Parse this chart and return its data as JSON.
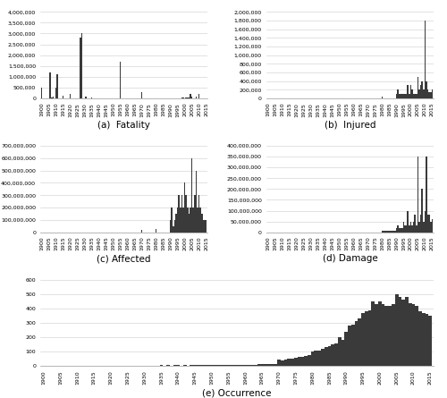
{
  "years": [
    1900,
    1901,
    1902,
    1903,
    1904,
    1905,
    1906,
    1907,
    1908,
    1909,
    1910,
    1911,
    1912,
    1913,
    1914,
    1915,
    1916,
    1917,
    1918,
    1919,
    1920,
    1921,
    1922,
    1923,
    1924,
    1925,
    1926,
    1927,
    1928,
    1929,
    1930,
    1931,
    1932,
    1933,
    1934,
    1935,
    1936,
    1937,
    1938,
    1939,
    1940,
    1941,
    1942,
    1943,
    1944,
    1945,
    1946,
    1947,
    1948,
    1949,
    1950,
    1951,
    1952,
    1953,
    1954,
    1955,
    1956,
    1957,
    1958,
    1959,
    1960,
    1961,
    1962,
    1963,
    1964,
    1965,
    1966,
    1967,
    1968,
    1969,
    1970,
    1971,
    1972,
    1973,
    1974,
    1975,
    1976,
    1977,
    1978,
    1979,
    1980,
    1981,
    1982,
    1983,
    1984,
    1985,
    1986,
    1987,
    1988,
    1989,
    1990,
    1991,
    1992,
    1993,
    1994,
    1995,
    1996,
    1997,
    1998,
    1999,
    2000,
    2001,
    2002,
    2003,
    2004,
    2005,
    2006,
    2007,
    2008,
    2009,
    2010,
    2011,
    2012,
    2013,
    2014,
    2015
  ],
  "fatality": [
    500000,
    9000,
    12000,
    7000,
    4000,
    8000,
    1200000,
    25000,
    75000,
    10000,
    500000,
    1100000,
    5000,
    8000,
    6000,
    140000,
    5000,
    5000,
    5000,
    5000,
    200000,
    5000,
    5000,
    5000,
    5000,
    5000,
    5000,
    2800000,
    3000000,
    5000,
    5000,
    100000,
    5000,
    5000,
    5000,
    50000,
    5000,
    5000,
    5000,
    5000,
    5000,
    5000,
    5000,
    5000,
    5000,
    5000,
    5000,
    5000,
    5000,
    5000,
    5000,
    5000,
    5000,
    5000,
    5000,
    1700000,
    5000,
    5000,
    5000,
    5000,
    5000,
    5000,
    5000,
    5000,
    5000,
    5000,
    5000,
    5000,
    5000,
    5000,
    300000,
    5000,
    5000,
    5000,
    5000,
    5000,
    3000,
    5000,
    5000,
    5000,
    5000,
    5000,
    5000,
    5000,
    5000,
    5000,
    5000,
    5000,
    5000,
    5000,
    5000,
    5000,
    5000,
    5000,
    5000,
    5000,
    5000,
    5000,
    50000,
    30000,
    15000,
    25000,
    30000,
    35000,
    220000,
    90000,
    6000,
    8000,
    80000,
    15000,
    220000,
    10000,
    10000,
    8000,
    8000,
    12000
  ],
  "injured": [
    2000,
    1000,
    1000,
    1000,
    1000,
    1000,
    5000,
    1000,
    3000,
    1000,
    3000,
    1000,
    1000,
    1000,
    1000,
    1000,
    1000,
    1000,
    1000,
    1000,
    1000,
    1000,
    1000,
    1000,
    1000,
    1000,
    1000,
    1000,
    1000,
    1000,
    1000,
    1000,
    1000,
    1000,
    1000,
    1000,
    1000,
    1000,
    1000,
    1000,
    1000,
    1000,
    1000,
    1000,
    1000,
    1000,
    1000,
    1000,
    1000,
    1000,
    1000,
    1000,
    1000,
    1000,
    1000,
    1000,
    1000,
    1000,
    1000,
    1000,
    1000,
    1000,
    1000,
    1000,
    1000,
    1000,
    1000,
    1000,
    1000,
    1000,
    1000,
    1000,
    1000,
    1000,
    1000,
    1000,
    1000,
    1000,
    1000,
    1000,
    50000,
    5000,
    5000,
    5000,
    5000,
    5000,
    5000,
    5000,
    5000,
    5000,
    100000,
    200000,
    100000,
    100000,
    100000,
    100000,
    100000,
    100000,
    300000,
    100000,
    300000,
    200000,
    100000,
    100000,
    100000,
    500000,
    200000,
    300000,
    400000,
    200000,
    1800000,
    400000,
    200000,
    150000,
    150000,
    200000
  ],
  "affected": [
    0,
    0,
    0,
    0,
    0,
    0,
    0,
    0,
    0,
    0,
    0,
    0,
    0,
    0,
    0,
    0,
    0,
    0,
    0,
    0,
    5000,
    5000,
    0,
    5000,
    0,
    0,
    0,
    5000,
    0,
    0,
    5000,
    5000,
    0,
    0,
    5000,
    0,
    0,
    5000,
    0,
    0,
    5000,
    5000,
    5000,
    5000,
    5000,
    5000,
    5000,
    5000,
    5000,
    5000,
    5000,
    5000,
    5000,
    5000,
    5000,
    5000,
    5000,
    5000,
    5000,
    5000,
    5000,
    5000,
    5000,
    5000,
    5000,
    5000,
    5000,
    5000,
    5000,
    5000,
    20000000,
    5000,
    5000,
    5000,
    5000,
    5000,
    5000,
    5000,
    5000,
    5000,
    30000000,
    5000,
    5000,
    5000,
    5000,
    5000,
    5000,
    5000,
    5000,
    5000,
    100000000,
    200000000,
    50000000,
    100000000,
    150000000,
    200000000,
    300000000,
    200000000,
    300000000,
    200000000,
    400000000,
    300000000,
    200000000,
    150000000,
    200000000,
    600000000,
    200000000,
    300000000,
    500000000,
    200000000,
    300000000,
    200000000,
    150000000,
    100000000,
    100000000,
    100000000
  ],
  "damage": [
    0,
    0,
    0,
    0,
    0,
    0,
    0,
    0,
    0,
    0,
    0,
    0,
    0,
    0,
    0,
    0,
    0,
    0,
    0,
    0,
    0,
    0,
    0,
    0,
    0,
    0,
    0,
    0,
    0,
    0,
    0,
    0,
    0,
    0,
    0,
    0,
    0,
    0,
    0,
    0,
    0,
    0,
    0,
    0,
    0,
    0,
    0,
    0,
    0,
    0,
    0,
    0,
    0,
    0,
    0,
    0,
    0,
    0,
    0,
    0,
    0,
    0,
    0,
    0,
    0,
    0,
    0,
    0,
    0,
    0,
    0,
    0,
    0,
    0,
    0,
    0,
    0,
    0,
    0,
    0,
    5000000,
    5000000,
    5000000,
    5000000,
    5000000,
    5000000,
    5000000,
    5000000,
    5000000,
    5000000,
    20000000,
    30000000,
    20000000,
    20000000,
    20000000,
    50000000,
    30000000,
    30000000,
    100000000,
    30000000,
    50000000,
    30000000,
    50000000,
    80000000,
    30000000,
    350000000,
    50000000,
    80000000,
    200000000,
    50000000,
    100000000,
    350000000,
    80000000,
    80000000,
    50000000,
    60000000
  ],
  "occurrence": [
    1,
    1,
    1,
    1,
    1,
    2,
    2,
    2,
    3,
    2,
    3,
    3,
    2,
    3,
    3,
    4,
    3,
    3,
    3,
    3,
    4,
    4,
    3,
    4,
    3,
    4,
    4,
    4,
    5,
    4,
    5,
    5,
    5,
    4,
    5,
    6,
    5,
    6,
    5,
    6,
    6,
    5,
    6,
    5,
    6,
    7,
    6,
    7,
    6,
    7,
    8,
    7,
    8,
    8,
    9,
    9,
    9,
    10,
    9,
    10,
    11,
    10,
    11,
    11,
    12,
    13,
    12,
    13,
    13,
    15,
    47,
    40,
    45,
    50,
    55,
    60,
    65,
    65,
    70,
    80,
    100,
    105,
    110,
    120,
    130,
    140,
    150,
    160,
    200,
    180,
    240,
    280,
    290,
    310,
    330,
    370,
    380,
    390,
    450,
    430,
    450,
    430,
    420,
    420,
    430,
    500,
    480,
    460,
    480,
    440,
    430,
    420,
    380,
    370,
    360,
    350
  ],
  "bar_color": "#3a3a3a",
  "background_color": "#ffffff",
  "tick_fontsize": 4.5,
  "caption_fontsize": 7.5,
  "fatality_ylim": 4000000,
  "fatality_ytick": 500000,
  "injured_ylim": 2000000,
  "injured_ytick": 200000,
  "affected_ylim": 700000000,
  "affected_ytick": 100000000,
  "damage_ylim": 400000000,
  "damage_ytick": 50000000,
  "occurrence_ylim": 600,
  "occurrence_ytick": 100
}
